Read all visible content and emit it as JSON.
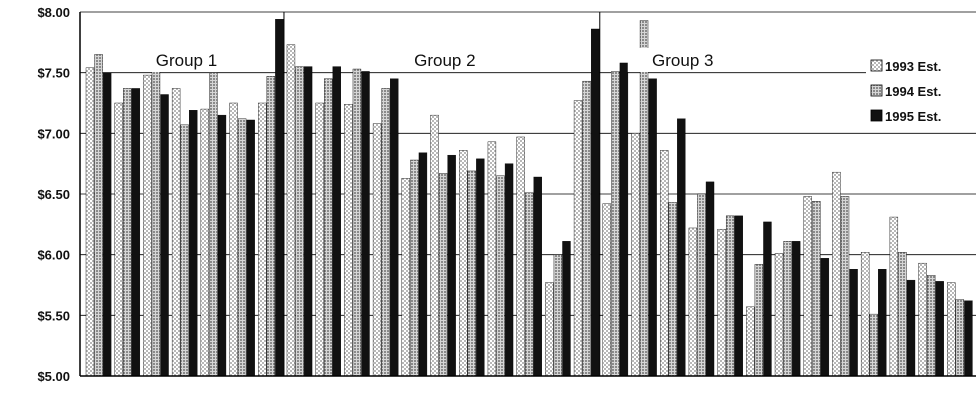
{
  "chart_data": {
    "type": "bar",
    "title": "",
    "xlabel": "",
    "ylabel": "",
    "ylim": [
      5.0,
      8.0
    ],
    "y_ticks": [
      "$8.00",
      "$7.50",
      "$7.00",
      "$6.50",
      "$6.00",
      "$5.50",
      "$5.00"
    ],
    "y_tick_values": [
      8.0,
      7.5,
      7.0,
      6.5,
      6.0,
      5.5,
      5.0
    ],
    "grid": true,
    "legend_position": "top-right",
    "colors": {
      "s1993": "#b8b8b8",
      "s1994": "#8a8a8a",
      "s1995": "#111111"
    },
    "groups": [
      {
        "label": "Group 1",
        "start_index": 0,
        "end_index": 6
      },
      {
        "label": "Group 2",
        "start_index": 7,
        "end_index": 17
      },
      {
        "label": "Group 3",
        "start_index": 18,
        "end_index": 30
      }
    ],
    "series": [
      {
        "name": "1993 Est.",
        "values": [
          7.54,
          7.25,
          7.48,
          7.37,
          7.2,
          7.25,
          7.25,
          7.73,
          7.25,
          7.24,
          7.08,
          6.63,
          7.15,
          6.86,
          6.93,
          6.97,
          5.77,
          7.27,
          6.42,
          7.0,
          6.86,
          6.22,
          6.21,
          5.57,
          6.01,
          6.48,
          6.68,
          6.02,
          6.31,
          5.93,
          5.77
        ]
      },
      {
        "name": "1994 Est.",
        "values": [
          7.65,
          7.37,
          7.52,
          7.07,
          7.5,
          7.12,
          7.47,
          7.55,
          7.45,
          7.53,
          7.37,
          6.78,
          6.67,
          6.69,
          6.65,
          6.51,
          6.0,
          7.43,
          7.51,
          7.93,
          6.43,
          6.5,
          6.32,
          5.92,
          6.11,
          6.44,
          6.48,
          5.51,
          6.02,
          5.83,
          5.63
        ]
      },
      {
        "name": "1995 Est.",
        "values": [
          7.5,
          7.37,
          7.32,
          7.19,
          7.15,
          7.11,
          7.94,
          7.55,
          7.55,
          7.51,
          7.45,
          6.84,
          6.82,
          6.79,
          6.75,
          6.64,
          6.11,
          7.86,
          7.58,
          7.45,
          7.12,
          6.6,
          6.32,
          6.27,
          6.11,
          5.97,
          5.88,
          5.88,
          5.79,
          5.78,
          5.62
        ]
      }
    ]
  }
}
